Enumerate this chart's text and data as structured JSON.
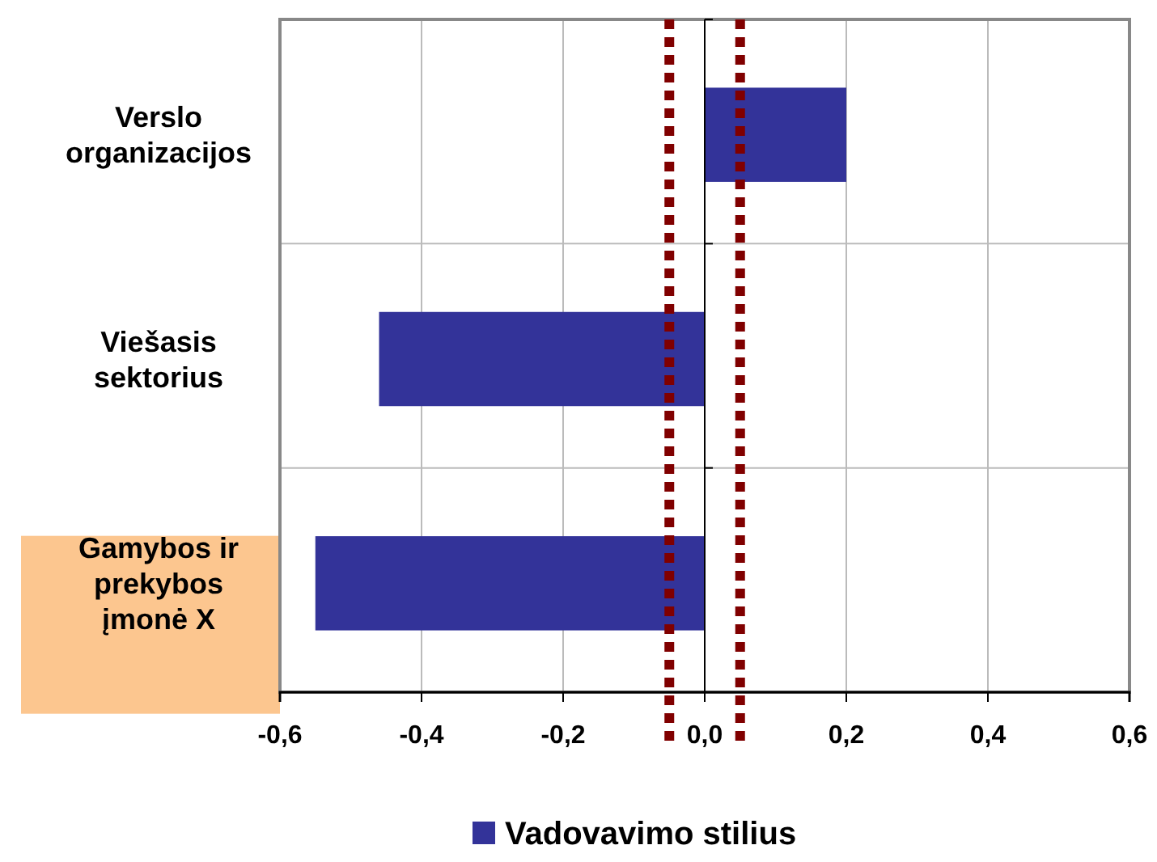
{
  "chart_data": {
    "type": "bar",
    "orientation": "horizontal",
    "categories": [
      "Verslo\norganizacijos",
      "Viešasis\nsektorius",
      "Gamybos ir\nprekybos\nįmonė X"
    ],
    "series": [
      {
        "name": "Vadovavimo stilius",
        "color": "#333399",
        "values": [
          0.2,
          -0.46,
          -0.55
        ]
      }
    ],
    "xlim": [
      -0.6,
      0.6
    ],
    "xticks": [
      {
        "value": -0.6,
        "label": "-0,6"
      },
      {
        "value": -0.4,
        "label": "-0,4"
      },
      {
        "value": -0.2,
        "label": "-0,2"
      },
      {
        "value": 0,
        "label": "0,0"
      },
      {
        "value": 0.2,
        "label": "0,2"
      },
      {
        "value": 0.4,
        "label": "0,4"
      },
      {
        "value": 0.6,
        "label": "0,6"
      }
    ],
    "ref_lines": [
      {
        "axis": "x",
        "value": -0.05,
        "color": "#800000",
        "line_style": "dotted"
      },
      {
        "axis": "x",
        "value": 0.05,
        "color": "#800000",
        "line_style": "dotted"
      }
    ],
    "grid": true,
    "legend": "bottom"
  }
}
